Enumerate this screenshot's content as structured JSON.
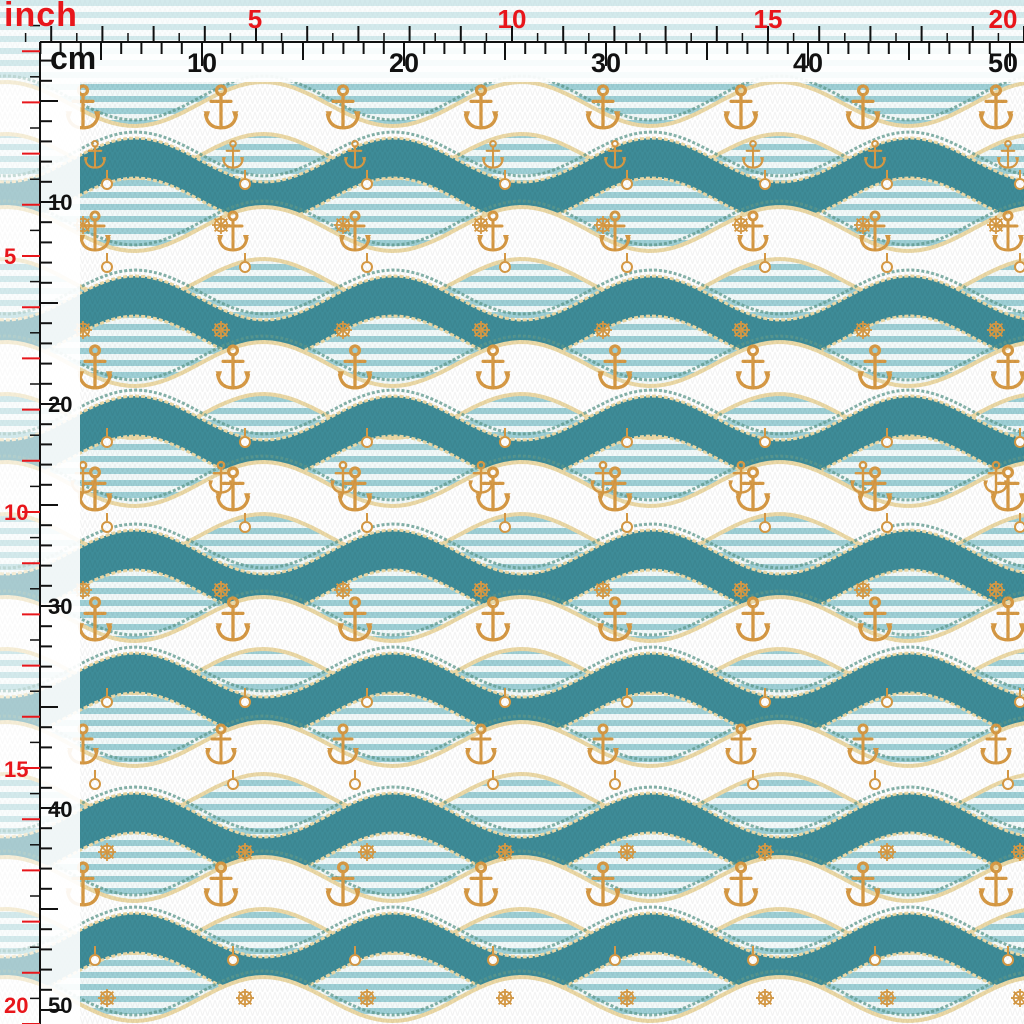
{
  "ruler": {
    "inch_unit": "inch",
    "cm_unit": "cm",
    "top_inch_labels": [
      "5",
      "10",
      "15",
      "20"
    ],
    "top_cm_labels": [
      "10",
      "20",
      "30",
      "40",
      "50"
    ],
    "left_inch_labels": [
      "5",
      "10",
      "15",
      "20"
    ],
    "left_cm_labels": [
      "10",
      "20",
      "30",
      "40",
      "50"
    ],
    "inch_color": "#e8161b",
    "cm_color": "#111111"
  },
  "pattern": {
    "motifs": [
      "anchor-icon",
      "ships-wheel-icon",
      "ring-icon",
      "rope-trim"
    ],
    "colors": {
      "teal_wave": "#3e8c98",
      "stripe_blue": "#9ed0d6",
      "white_wave": "#ffffff",
      "gold": "#d79a45",
      "rope_green": "#5e9a8e",
      "cream_trim": "#ecd9a6"
    }
  }
}
